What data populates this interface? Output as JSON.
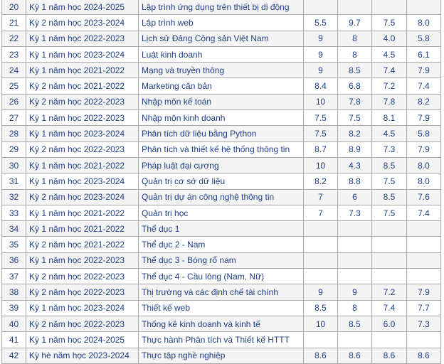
{
  "rows": [
    {
      "no": "20",
      "term": "Kỳ 1 năm học 2024-2025",
      "course": "Lập trình ứng dụng trên thiết bị di động",
      "g1": "",
      "g2": "",
      "g3": "",
      "g4": ""
    },
    {
      "no": "21",
      "term": "Kỳ 2 năm học 2023-2024",
      "course": "Lập trình web",
      "g1": "5.5",
      "g2": "9.7",
      "g3": "7.5",
      "g4": "8.0"
    },
    {
      "no": "22",
      "term": "Kỳ 1 năm học 2022-2023",
      "course": "Lịch sử Đảng Cộng sản Việt Nam",
      "g1": "9",
      "g2": "8",
      "g3": "4.0",
      "g4": "5.8"
    },
    {
      "no": "23",
      "term": "Kỳ 1 năm học 2023-2024",
      "course": "Luật kinh doanh",
      "g1": "9",
      "g2": "8",
      "g3": "4.5",
      "g4": "6.1"
    },
    {
      "no": "24",
      "term": "Kỳ 1 năm học 2021-2022",
      "course": "Mạng và truyền thông",
      "g1": "9",
      "g2": "8.5",
      "g3": "7.4",
      "g4": "7.9"
    },
    {
      "no": "25",
      "term": "Kỳ 2 năm học 2021-2022",
      "course": "Marketing căn bản",
      "g1": "8.4",
      "g2": "6.8",
      "g3": "7.2",
      "g4": "7.4"
    },
    {
      "no": "26",
      "term": "Kỳ 2 năm học 2022-2023",
      "course": "Nhập môn kế toán",
      "g1": "10",
      "g2": "7.8",
      "g3": "7.8",
      "g4": "8.2"
    },
    {
      "no": "27",
      "term": "Kỳ 1 năm học 2022-2023",
      "course": "Nhập môn kinh doanh",
      "g1": "7.5",
      "g2": "7.5",
      "g3": "8.1",
      "g4": "7.9"
    },
    {
      "no": "28",
      "term": "Kỳ 1 năm học 2023-2024",
      "course": "Phân tích dữ liệu bằng Python",
      "g1": "7.5",
      "g2": "8.2",
      "g3": "4.5",
      "g4": "5.8"
    },
    {
      "no": "29",
      "term": "Kỳ 2 năm học 2022-2023",
      "course": "Phân tích và thiết kế hệ thống thông tin",
      "g1": "8.7",
      "g2": "8.9",
      "g3": "7.3",
      "g4": "7.9"
    },
    {
      "no": "30",
      "term": "Kỳ 1 năm học 2021-2022",
      "course": "Pháp luật đại cương",
      "g1": "10",
      "g2": "4.3",
      "g3": "8.5",
      "g4": "8.0"
    },
    {
      "no": "31",
      "term": "Kỳ 1 năm học 2023-2024",
      "course": "Quản trị cơ sở dữ liệu",
      "g1": "8.2",
      "g2": "8.8",
      "g3": "7.5",
      "g4": "8.0"
    },
    {
      "no": "32",
      "term": "Kỳ 2 năm học 2023-2024",
      "course": "Quản trị dự án công nghệ thông tin",
      "g1": "7",
      "g2": "6",
      "g3": "8.5",
      "g4": "7.6"
    },
    {
      "no": "33",
      "term": "Kỳ 1 năm học 2021-2022",
      "course": "Quản trị học",
      "g1": "7",
      "g2": "7.3",
      "g3": "7.5",
      "g4": "7.4"
    },
    {
      "no": "34",
      "term": "Kỳ 1 năm học 2021-2022",
      "course": "Thể dục 1",
      "g1": "",
      "g2": "",
      "g3": "",
      "g4": ""
    },
    {
      "no": "35",
      "term": "Kỳ 2 năm học 2021-2022",
      "course": "Thể dục 2 - Nam",
      "g1": "",
      "g2": "",
      "g3": "",
      "g4": ""
    },
    {
      "no": "36",
      "term": "Kỳ 1 năm học 2022-2023",
      "course": "Thể dục 3 - Bóng rổ nam",
      "g1": "",
      "g2": "",
      "g3": "",
      "g4": ""
    },
    {
      "no": "37",
      "term": "Kỳ 2 năm học 2022-2023",
      "course": "Thể dục 4 - Cầu lông (Nam, Nữ)",
      "g1": "",
      "g2": "",
      "g3": "",
      "g4": ""
    },
    {
      "no": "38",
      "term": "Kỳ 2 năm học 2022-2023",
      "course": "Thị trường và các định chế tài chính",
      "g1": "9",
      "g2": "9",
      "g3": "7.2",
      "g4": "7.9"
    },
    {
      "no": "39",
      "term": "Kỳ 1 năm học 2023-2024",
      "course": "Thiết kế web",
      "g1": "8.5",
      "g2": "8",
      "g3": "7.4",
      "g4": "7.7"
    },
    {
      "no": "40",
      "term": "Kỳ 2 năm học 2022-2023",
      "course": "Thống kê kinh doanh và kinh tế",
      "g1": "10",
      "g2": "8.5",
      "g3": "6.0",
      "g4": "7.3"
    },
    {
      "no": "41",
      "term": "Kỳ 1 năm học 2024-2025",
      "course": "Thực hành Phân tích và Thiết kế HTTT",
      "g1": "",
      "g2": "",
      "g3": "",
      "g4": ""
    },
    {
      "no": "42",
      "term": "Kỳ hè năm học 2023-2024",
      "course": "Thực tập nghề nghiệp",
      "g1": "8.6",
      "g2": "8.6",
      "g3": "8.6",
      "g4": "8.6"
    }
  ]
}
